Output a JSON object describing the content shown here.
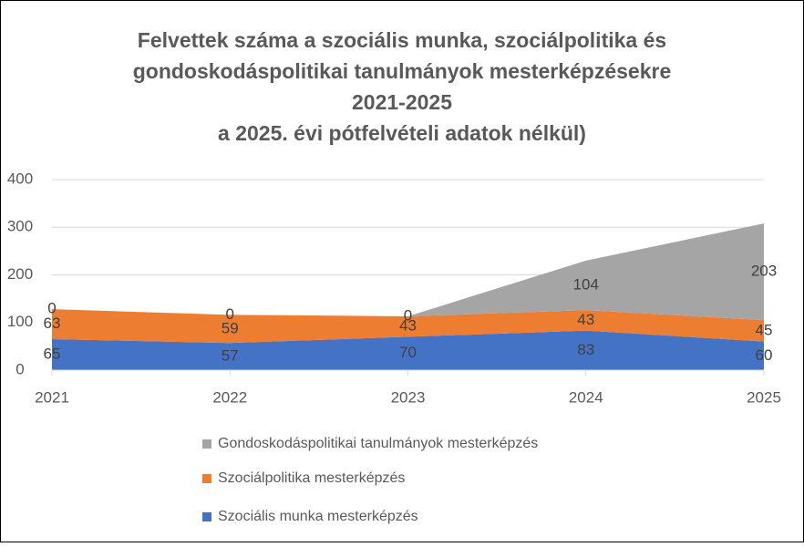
{
  "chart_data": {
    "type": "stacked_area",
    "title": [
      "Felvettek száma a szociális munka, szociálpolitika és",
      "gondoskodáspolitikai tanulmányok mesterképzésekre",
      "2021-2025",
      "a 2025. évi pótfelvételi adatok nélkül)"
    ],
    "categories": [
      "2021",
      "2022",
      "2023",
      "2024",
      "2025"
    ],
    "series": [
      {
        "name": "Szociális munka mesterképzés",
        "color": "#4472c4",
        "values": [
          65,
          57,
          70,
          83,
          60
        ]
      },
      {
        "name": "Szociálpolitika mesterképzés",
        "color": "#ed7d31",
        "values": [
          63,
          59,
          43,
          43,
          45
        ]
      },
      {
        "name": "Gondoskodáspolitikai tanulmányok mesterképzés",
        "color": "#a5a5a5",
        "values": [
          0,
          0,
          0,
          104,
          203
        ]
      }
    ],
    "ylim": [
      0,
      400
    ],
    "yticks": [
      0,
      100,
      200,
      300,
      400
    ],
    "grid": true,
    "legend": "bottom"
  }
}
